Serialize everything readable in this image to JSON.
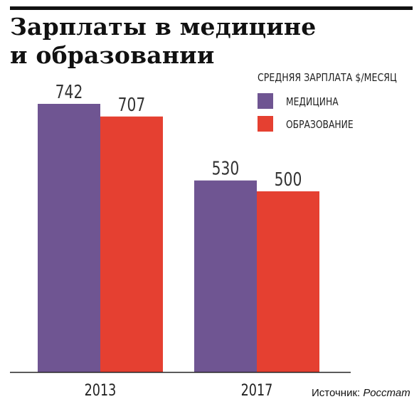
{
  "title_lines": [
    "Зарплаты в медицине",
    "и образовании"
  ],
  "legend": {
    "title": "СРЕДНЯЯ ЗАРПЛАТА $/МЕСЯЦ",
    "items": [
      {
        "label": "МЕДИЦИНА",
        "color": "#6f5592"
      },
      {
        "label": "ОБРАЗОВАНИЕ",
        "color": "#e54031"
      }
    ]
  },
  "source": {
    "label": "Источник:",
    "value": "Росстат"
  },
  "chart_data": {
    "type": "bar",
    "categories": [
      "2013",
      "2017"
    ],
    "series": [
      {
        "name": "МЕДИЦИНА",
        "color": "#6f5592",
        "values": [
          742,
          530
        ]
      },
      {
        "name": "ОБРАЗОВАНИЕ",
        "color": "#e54031",
        "values": [
          707,
          500
        ]
      }
    ],
    "data_labels": true,
    "ylim": [
      0,
      742
    ],
    "grid": false,
    "legend_position": "top-right"
  }
}
